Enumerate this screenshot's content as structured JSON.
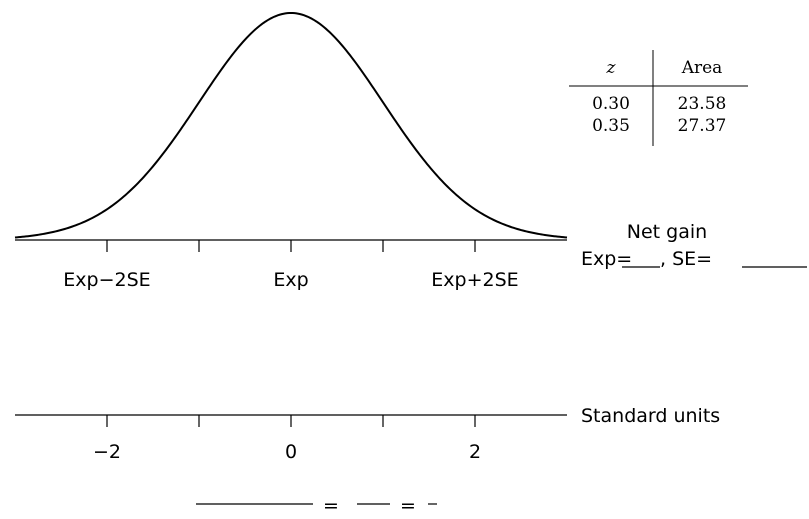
{
  "curve": {
    "type": "normal-density",
    "tick_labels": [
      "Exp−2SE",
      "Exp",
      "Exp+2SE"
    ]
  },
  "side_label": {
    "title": "Net gain",
    "exp_prefix": "Exp=",
    "se_prefix": ", SE="
  },
  "standard_axis": {
    "label": "Standard units",
    "tick_labels": [
      "−2",
      "0",
      "2"
    ]
  },
  "z_table": {
    "headers": [
      "z",
      "Area"
    ],
    "rows": [
      [
        "0.30",
        "23.58"
      ],
      [
        "0.35",
        "27.37"
      ]
    ]
  },
  "bottom_equation": {
    "equals": [
      "=",
      "="
    ]
  }
}
